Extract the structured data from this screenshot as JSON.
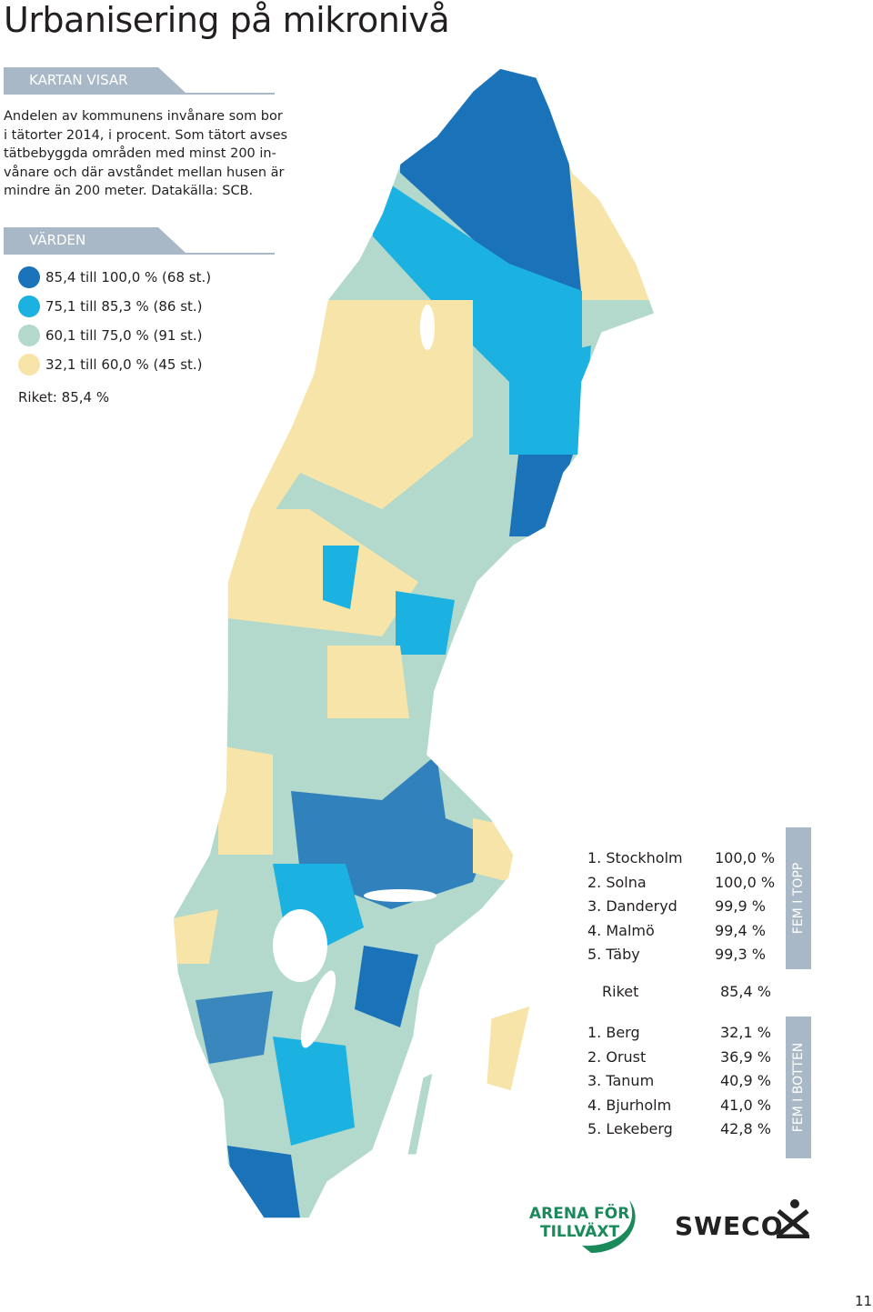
{
  "title": "Urbanisering på mikronivå",
  "map_info": {
    "heading": "KARTAN VISAR",
    "lines": [
      "Andelen av kommunens invånare som bor",
      "i tätorter 2014, i procent. Som tätort avses",
      "tätbebyggda områden med minst 200 in-",
      "vånare och där avståndet mellan husen är",
      "mindre än 200 meter. Datakälla: SCB."
    ]
  },
  "legend": {
    "heading": "VÄRDEN",
    "items": [
      {
        "label": "85,4 till 100,0 % (68 st.)",
        "color": "#1a72b9"
      },
      {
        "label": "75,1 till 85,3 % (86 st.)",
        "color": "#1bb1e0"
      },
      {
        "label": "60,1 till 75,0 % (91 st.)",
        "color": "#b2d9cc"
      },
      {
        "label": "32,1 till 60,0 % (45 st.)",
        "color": "#f6e4a9"
      }
    ],
    "national": "Riket: 85,4 %"
  },
  "top": {
    "label": "FEM I TOPP",
    "rows": [
      [
        "1. Stockholm",
        "100,0 %"
      ],
      [
        "2. Solna",
        "100,0 %"
      ],
      [
        "3. Danderyd",
        "99,9 %"
      ],
      [
        "4. Malmö",
        "99,4 %"
      ],
      [
        "5. Täby",
        "99,3 %"
      ]
    ]
  },
  "national_row": [
    "Riket",
    "85,4 %"
  ],
  "bottom": {
    "label": "FEM I BOTTEN",
    "rows": [
      [
        "1. Berg",
        "32,1 %"
      ],
      [
        "2. Orust",
        "36,9 %"
      ],
      [
        "3. Tanum",
        "40,9 %"
      ],
      [
        "4. Bjurholm",
        "41,0 %"
      ],
      [
        "5. Lekeberg",
        "42,8 %"
      ]
    ]
  },
  "logos": {
    "arena": [
      "ARENA FÖR",
      "TILLVÄXT"
    ],
    "sweco": "SWECO"
  },
  "page_number": "11"
}
